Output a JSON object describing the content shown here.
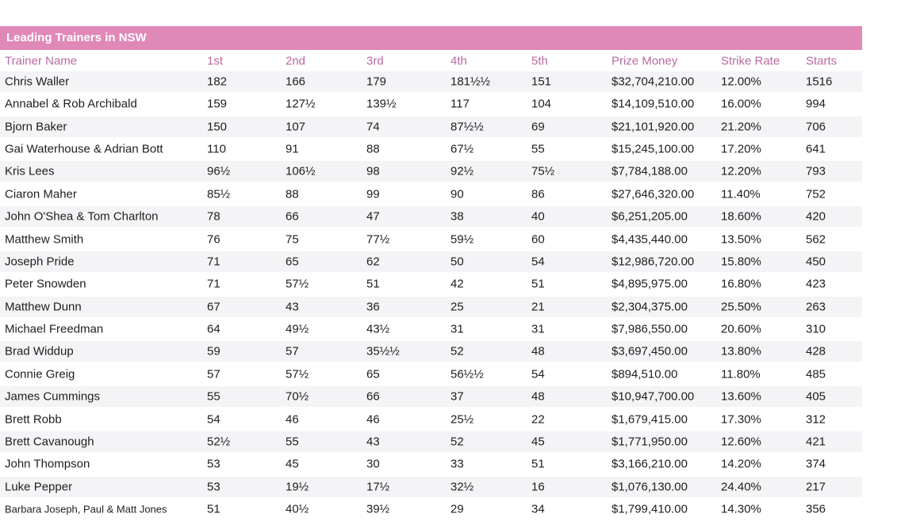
{
  "table": {
    "title": "Leading Trainers in NSW",
    "header": [
      "Trainer Name",
      "1st",
      "2nd",
      "3rd",
      "4th",
      "5th",
      "Prize Money",
      "Strike Rate",
      "Starts"
    ],
    "rows": [
      [
        "Chris Waller",
        "182",
        "166",
        "179",
        "181½½",
        "151",
        "$32,704,210.00",
        "12.00%",
        "1516"
      ],
      [
        "Annabel & Rob Archibald",
        "159",
        "127½",
        "139½",
        "117",
        "104",
        "$14,109,510.00",
        "16.00%",
        "994"
      ],
      [
        "Bjorn Baker",
        "150",
        "107",
        "74",
        "87½½",
        "69",
        "$21,101,920.00",
        "21.20%",
        "706"
      ],
      [
        "Gai Waterhouse & Adrian Bott",
        "110",
        "91",
        "88",
        "67½",
        "55",
        "$15,245,100.00",
        "17.20%",
        "641"
      ],
      [
        "Kris Lees",
        "96½",
        "106½",
        "98",
        "92½",
        "75½",
        "$7,784,188.00",
        "12.20%",
        "793"
      ],
      [
        "Ciaron Maher",
        "85½",
        "88",
        "99",
        "90",
        "86",
        "$27,646,320.00",
        "11.40%",
        "752"
      ],
      [
        "John O'Shea & Tom Charlton",
        "78",
        "66",
        "47",
        "38",
        "40",
        "$6,251,205.00",
        "18.60%",
        "420"
      ],
      [
        "Matthew Smith",
        "76",
        "75",
        "77½",
        "59½",
        "60",
        "$4,435,440.00",
        "13.50%",
        "562"
      ],
      [
        "Joseph Pride",
        "71",
        "65",
        "62",
        "50",
        "54",
        "$12,986,720.00",
        "15.80%",
        "450"
      ],
      [
        "Peter Snowden",
        "71",
        "57½",
        "51",
        "42",
        "51",
        "$4,895,975.00",
        "16.80%",
        "423"
      ],
      [
        "Matthew Dunn",
        "67",
        "43",
        "36",
        "25",
        "21",
        "$2,304,375.00",
        "25.50%",
        "263"
      ],
      [
        "Michael Freedman",
        "64",
        "49½",
        "43½",
        "31",
        "31",
        "$7,986,550.00",
        "20.60%",
        "310"
      ],
      [
        "Brad Widdup",
        "59",
        "57",
        "35½½",
        "52",
        "48",
        "$3,697,450.00",
        "13.80%",
        "428"
      ],
      [
        "Connie Greig",
        "57",
        "57½",
        "65",
        "56½½",
        "54",
        "$894,510.00",
        "11.80%",
        "485"
      ],
      [
        "James Cummings",
        "55",
        "70½",
        "66",
        "37",
        "48",
        "$10,947,700.00",
        "13.60%",
        "405"
      ],
      [
        "Brett Robb",
        "54",
        "46",
        "46",
        "25½",
        "22",
        "$1,679,415.00",
        "17.30%",
        "312"
      ],
      [
        "Brett Cavanough",
        "52½",
        "55",
        "43",
        "52",
        "45",
        "$1,771,950.00",
        "12.60%",
        "421"
      ],
      [
        "John Thompson",
        "53",
        "45",
        "30",
        "33",
        "51",
        "$3,166,210.00",
        "14.20%",
        "374"
      ],
      [
        "Luke Pepper",
        "53",
        "19½",
        "17½",
        "32½",
        "16",
        "$1,076,130.00",
        "24.40%",
        "217"
      ],
      [
        "Barbara Joseph, Paul & Matt Jones",
        "51",
        "40½",
        "39½",
        "29",
        "34",
        "$1,799,410.00",
        "14.30%",
        "356"
      ]
    ]
  }
}
